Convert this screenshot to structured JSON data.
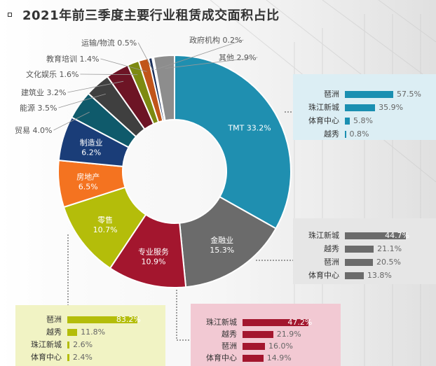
{
  "chart_data": [
    {
      "type": "pie",
      "title": "2021年前三季度主要行业租赁成交面积占比",
      "slices": [
        {
          "label": "TMT",
          "value": 33.2,
          "color": "#1f8fb0",
          "text_pos": "inside"
        },
        {
          "label": "金融业",
          "value": 15.3,
          "color": "#6b6b6b",
          "text_pos": "inside"
        },
        {
          "label": "专业服务",
          "value": 10.9,
          "color": "#a3162e",
          "text_pos": "inside"
        },
        {
          "label": "零售",
          "value": 10.7,
          "color": "#b4bd0a",
          "text_pos": "inside"
        },
        {
          "label": "房地产",
          "value": 6.5,
          "color": "#f47320",
          "text_pos": "inside"
        },
        {
          "label": "制造业",
          "value": 6.2,
          "color": "#1a3d78",
          "text_pos": "inside"
        },
        {
          "label": "贸易",
          "value": 4.0,
          "color": "#0f5a6b",
          "text_pos": "outside"
        },
        {
          "label": "能源",
          "value": 3.5,
          "color": "#3f3f3f",
          "text_pos": "outside"
        },
        {
          "label": "建筑业",
          "value": 3.2,
          "color": "#6d1425",
          "text_pos": "outside"
        },
        {
          "label": "文化娱乐",
          "value": 1.6,
          "color": "#7d8a12",
          "text_pos": "outside"
        },
        {
          "label": "教育培训",
          "value": 1.4,
          "color": "#c1551a",
          "text_pos": "outside"
        },
        {
          "label": "运输/物流",
          "value": 0.5,
          "color": "#1a2f5a",
          "text_pos": "outside"
        },
        {
          "label": "政府机构",
          "value": 0.2,
          "color": "#6fc5dc",
          "text_pos": "outside"
        },
        {
          "label": "其他",
          "value": 2.9,
          "color": "#8d8d8d",
          "text_pos": "outside"
        }
      ]
    },
    {
      "type": "bar",
      "name": "tmt-breakdown",
      "categories": [
        "琶洲",
        "珠江新城",
        "体育中心",
        "越秀"
      ],
      "values": [
        57.5,
        35.9,
        5.8,
        0.8
      ],
      "value_labels": [
        "57.5%",
        "35.9%",
        "5.8%",
        "0.8%"
      ],
      "color": "#1a8fb1",
      "panel_color": "#dceef4"
    },
    {
      "type": "bar",
      "name": "finance-breakdown",
      "categories": [
        "珠江新城",
        "越秀",
        "琶洲",
        "体育中心"
      ],
      "values": [
        44.7,
        21.1,
        20.5,
        13.8
      ],
      "value_labels": [
        "44.7%",
        "21.1%",
        "20.5%",
        "13.8%"
      ],
      "color": "#6b6b6b",
      "panel_color": "#e6e6e6"
    },
    {
      "type": "bar",
      "name": "professional-services-breakdown",
      "categories": [
        "珠江新城",
        "越秀",
        "琶洲",
        "体育中心"
      ],
      "values": [
        47.2,
        21.9,
        16.0,
        14.9
      ],
      "value_labels": [
        "47.2%",
        "21.9%",
        "16.0%",
        "14.9%"
      ],
      "color": "#a3162e",
      "panel_color": "#f2c9d3"
    },
    {
      "type": "bar",
      "name": "retail-breakdown",
      "categories": [
        "琶洲",
        "越秀",
        "珠江新城",
        "体育中心"
      ],
      "values": [
        83.2,
        11.8,
        2.6,
        2.4
      ],
      "value_labels": [
        "83.2%",
        "11.8%",
        "2.6%",
        "2.4%"
      ],
      "color": "#b4bd0a",
      "panel_color": "#f1f3c4"
    }
  ]
}
